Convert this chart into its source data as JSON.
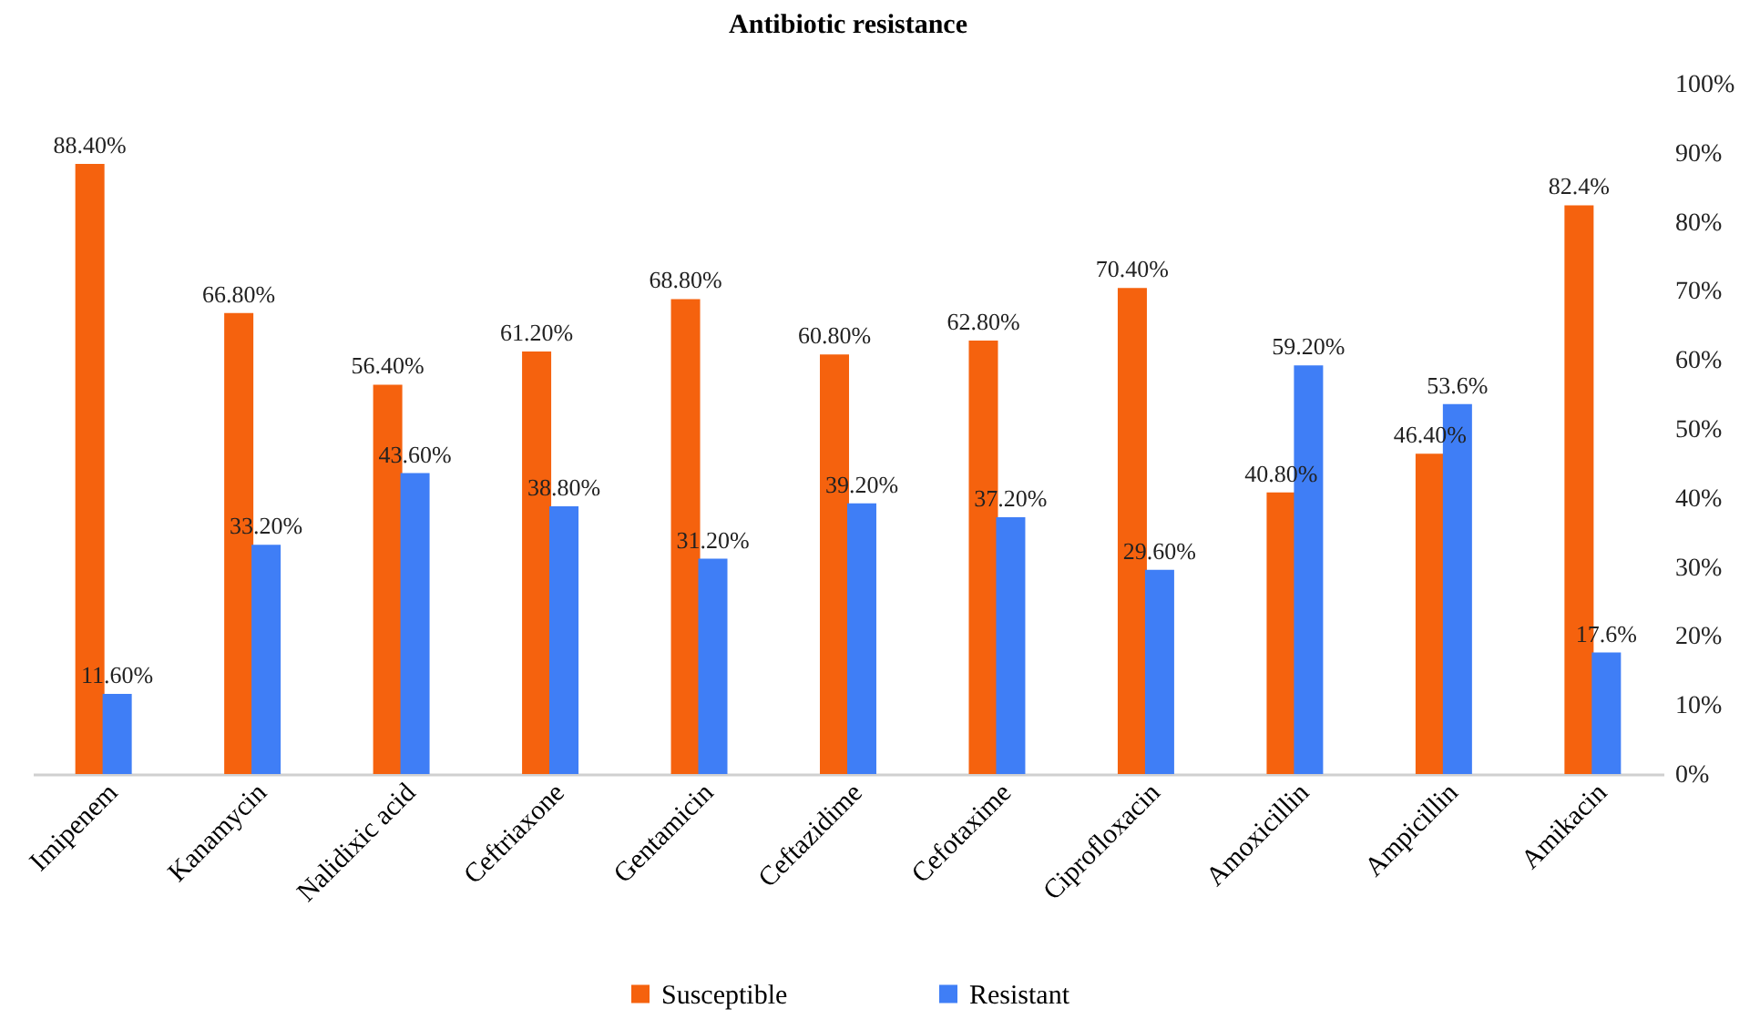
{
  "chart_data": {
    "type": "bar",
    "title": "Antibiotic resistance",
    "categories": [
      "Imipenem",
      "Kanamycin",
      "Nalidixic acid",
      "Ceftriaxone",
      "Gentamicin",
      "Ceftazidime",
      "Cefotaxime",
      "Ciprofloxacin",
      "Amoxicillin",
      "Ampicillin",
      "Amikacin"
    ],
    "series": [
      {
        "name": "Susceptible",
        "color": "#f5620e",
        "values": [
          88.4,
          66.8,
          56.4,
          61.2,
          68.8,
          60.8,
          62.8,
          70.4,
          40.8,
          46.4,
          82.4
        ],
        "value_labels": [
          "88.40%",
          "66.80%",
          "56.40%",
          "61.20%",
          "68.80%",
          "60.80%",
          "62.80%",
          "70.40%",
          "40.80%",
          "46.40%",
          "82.4%"
        ]
      },
      {
        "name": "Resistant",
        "color": "#3f7ef6",
        "values": [
          11.6,
          33.2,
          43.6,
          38.8,
          31.2,
          39.2,
          37.2,
          29.6,
          59.2,
          53.6,
          17.6
        ],
        "value_labels": [
          "11.60%",
          "33.20%",
          "43.60%",
          "38.80%",
          "31.20%",
          "39.20%",
          "37.20%",
          "29.60%",
          "59.20%",
          "53.6%",
          "17.6%"
        ]
      }
    ],
    "ylim": [
      0,
      100
    ],
    "yticks": [
      {
        "value": 0,
        "label": "0%"
      },
      {
        "value": 10,
        "label": "10%"
      },
      {
        "value": 20,
        "label": "20%"
      },
      {
        "value": 30,
        "label": "30%"
      },
      {
        "value": 40,
        "label": "40%"
      },
      {
        "value": 50,
        "label": "50%"
      },
      {
        "value": 60,
        "label": "60%"
      },
      {
        "value": 70,
        "label": "70%"
      },
      {
        "value": 80,
        "label": "80%"
      },
      {
        "value": 90,
        "label": "90%"
      },
      {
        "value": 100,
        "label": "100%"
      }
    ],
    "legend": "bottom"
  }
}
